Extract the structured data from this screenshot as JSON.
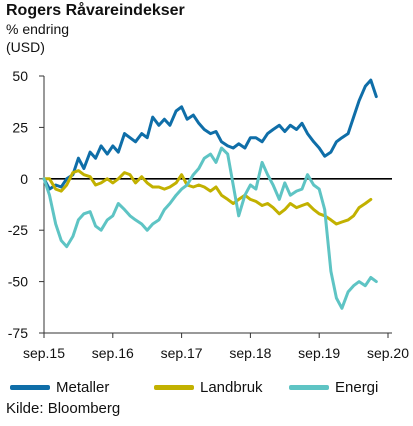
{
  "title": "Rogers Råvareindekser",
  "subtitle_line1": "% endring",
  "subtitle_line2": "(USD)",
  "source": "Kilde: Bloomberg",
  "chart_data": {
    "type": "line",
    "title": "Rogers Råvareindekser",
    "ylabel": "% endring (USD)",
    "xlabel": "",
    "ylim": [
      -75,
      50
    ],
    "xlim": [
      2015.75,
      2020.75
    ],
    "yticks": [
      50,
      25,
      0,
      -25,
      -50,
      -75
    ],
    "ytick_labels": [
      "50",
      "25",
      "0",
      "-25",
      "-50",
      "-75"
    ],
    "xticks": [
      2015.75,
      2016.75,
      2017.75,
      2018.75,
      2019.75,
      2020.75
    ],
    "xtick_labels": [
      "sep.15",
      "sep.16",
      "sep.17",
      "sep.18",
      "sep.19",
      "sep.20"
    ],
    "grid": false,
    "legend_position": "bottom",
    "series": [
      {
        "name": "Metaller",
        "color": "#0f6ea8",
        "points": [
          [
            2015.75,
            0
          ],
          [
            2015.83,
            -5
          ],
          [
            2015.92,
            -3
          ],
          [
            2016.0,
            -4
          ],
          [
            2016.08,
            0
          ],
          [
            2016.17,
            2
          ],
          [
            2016.25,
            10
          ],
          [
            2016.33,
            5
          ],
          [
            2016.42,
            13
          ],
          [
            2016.5,
            10
          ],
          [
            2016.58,
            16
          ],
          [
            2016.67,
            12
          ],
          [
            2016.75,
            16
          ],
          [
            2016.83,
            13
          ],
          [
            2016.92,
            22
          ],
          [
            2017.0,
            20
          ],
          [
            2017.08,
            18
          ],
          [
            2017.17,
            22
          ],
          [
            2017.25,
            20
          ],
          [
            2017.33,
            30
          ],
          [
            2017.42,
            26
          ],
          [
            2017.5,
            29
          ],
          [
            2017.58,
            26
          ],
          [
            2017.67,
            33
          ],
          [
            2017.75,
            35
          ],
          [
            2017.83,
            29
          ],
          [
            2017.92,
            31
          ],
          [
            2018.0,
            27
          ],
          [
            2018.08,
            24
          ],
          [
            2018.17,
            22
          ],
          [
            2018.25,
            23
          ],
          [
            2018.33,
            18
          ],
          [
            2018.42,
            16
          ],
          [
            2018.5,
            15
          ],
          [
            2018.58,
            17
          ],
          [
            2018.67,
            15
          ],
          [
            2018.75,
            20
          ],
          [
            2018.83,
            20
          ],
          [
            2018.92,
            18
          ],
          [
            2019.0,
            22
          ],
          [
            2019.08,
            24
          ],
          [
            2019.17,
            26
          ],
          [
            2019.25,
            23
          ],
          [
            2019.33,
            26
          ],
          [
            2019.42,
            24
          ],
          [
            2019.5,
            27
          ],
          [
            2019.58,
            22
          ],
          [
            2019.67,
            18
          ],
          [
            2019.75,
            15
          ],
          [
            2019.83,
            11
          ],
          [
            2019.92,
            13
          ],
          [
            2020.0,
            18
          ],
          [
            2020.08,
            20
          ],
          [
            2020.17,
            22
          ],
          [
            2020.25,
            30
          ],
          [
            2020.33,
            38
          ],
          [
            2020.42,
            45
          ],
          [
            2020.5,
            48
          ],
          [
            2020.58,
            40
          ]
        ]
      },
      {
        "name": "Landbruk",
        "color": "#c2b100",
        "points": [
          [
            2015.75,
            0
          ],
          [
            2015.83,
            0
          ],
          [
            2015.92,
            -5
          ],
          [
            2016.0,
            -6
          ],
          [
            2016.08,
            -3
          ],
          [
            2016.17,
            3
          ],
          [
            2016.25,
            4
          ],
          [
            2016.33,
            2
          ],
          [
            2016.42,
            1
          ],
          [
            2016.5,
            -3
          ],
          [
            2016.58,
            -2
          ],
          [
            2016.67,
            0
          ],
          [
            2016.75,
            -2
          ],
          [
            2016.83,
            0
          ],
          [
            2016.92,
            3
          ],
          [
            2017.0,
            2
          ],
          [
            2017.08,
            -2
          ],
          [
            2017.17,
            1
          ],
          [
            2017.25,
            -2
          ],
          [
            2017.33,
            -4
          ],
          [
            2017.42,
            -4
          ],
          [
            2017.5,
            -5
          ],
          [
            2017.58,
            -4
          ],
          [
            2017.67,
            -2
          ],
          [
            2017.75,
            2
          ],
          [
            2017.83,
            -3
          ],
          [
            2017.92,
            -4
          ],
          [
            2018.0,
            -3
          ],
          [
            2018.08,
            -4
          ],
          [
            2018.17,
            -6
          ],
          [
            2018.25,
            -4
          ],
          [
            2018.33,
            -8
          ],
          [
            2018.42,
            -10
          ],
          [
            2018.5,
            -12
          ],
          [
            2018.58,
            -10
          ],
          [
            2018.67,
            -8
          ],
          [
            2018.75,
            -10
          ],
          [
            2018.83,
            -11
          ],
          [
            2018.92,
            -13
          ],
          [
            2019.0,
            -12
          ],
          [
            2019.08,
            -14
          ],
          [
            2019.17,
            -17
          ],
          [
            2019.25,
            -15
          ],
          [
            2019.33,
            -12
          ],
          [
            2019.42,
            -14
          ],
          [
            2019.5,
            -13
          ],
          [
            2019.58,
            -12
          ],
          [
            2019.67,
            -15
          ],
          [
            2019.75,
            -17
          ],
          [
            2019.83,
            -18
          ],
          [
            2019.92,
            -20
          ],
          [
            2020.0,
            -22
          ],
          [
            2020.08,
            -21
          ],
          [
            2020.17,
            -20
          ],
          [
            2020.25,
            -18
          ],
          [
            2020.33,
            -14
          ],
          [
            2020.42,
            -12
          ],
          [
            2020.5,
            -10
          ]
        ]
      },
      {
        "name": "Energi",
        "color": "#5ec4c4",
        "points": [
          [
            2015.75,
            0
          ],
          [
            2015.83,
            -8
          ],
          [
            2015.92,
            -22
          ],
          [
            2016.0,
            -30
          ],
          [
            2016.08,
            -33
          ],
          [
            2016.17,
            -28
          ],
          [
            2016.25,
            -20
          ],
          [
            2016.33,
            -17
          ],
          [
            2016.42,
            -16
          ],
          [
            2016.5,
            -23
          ],
          [
            2016.58,
            -25
          ],
          [
            2016.67,
            -20
          ],
          [
            2016.75,
            -18
          ],
          [
            2016.83,
            -12
          ],
          [
            2016.92,
            -15
          ],
          [
            2017.0,
            -18
          ],
          [
            2017.08,
            -20
          ],
          [
            2017.17,
            -22
          ],
          [
            2017.25,
            -25
          ],
          [
            2017.33,
            -22
          ],
          [
            2017.42,
            -20
          ],
          [
            2017.5,
            -15
          ],
          [
            2017.58,
            -12
          ],
          [
            2017.67,
            -8
          ],
          [
            2017.75,
            -5
          ],
          [
            2017.83,
            -3
          ],
          [
            2017.92,
            2
          ],
          [
            2018.0,
            5
          ],
          [
            2018.08,
            10
          ],
          [
            2018.17,
            12
          ],
          [
            2018.25,
            8
          ],
          [
            2018.33,
            15
          ],
          [
            2018.42,
            12
          ],
          [
            2018.5,
            -3
          ],
          [
            2018.58,
            -18
          ],
          [
            2018.67,
            -8
          ],
          [
            2018.75,
            -3
          ],
          [
            2018.83,
            -5
          ],
          [
            2018.92,
            8
          ],
          [
            2019.0,
            2
          ],
          [
            2019.08,
            -3
          ],
          [
            2019.17,
            -10
          ],
          [
            2019.25,
            -2
          ],
          [
            2019.33,
            -8
          ],
          [
            2019.42,
            -6
          ],
          [
            2019.5,
            -5
          ],
          [
            2019.58,
            2
          ],
          [
            2019.67,
            -3
          ],
          [
            2019.75,
            -5
          ],
          [
            2019.83,
            -15
          ],
          [
            2019.92,
            -45
          ],
          [
            2020.0,
            -58
          ],
          [
            2020.08,
            -63
          ],
          [
            2020.17,
            -55
          ],
          [
            2020.25,
            -52
          ],
          [
            2020.33,
            -50
          ],
          [
            2020.42,
            -52
          ],
          [
            2020.5,
            -48
          ],
          [
            2020.58,
            -50
          ]
        ]
      }
    ]
  }
}
